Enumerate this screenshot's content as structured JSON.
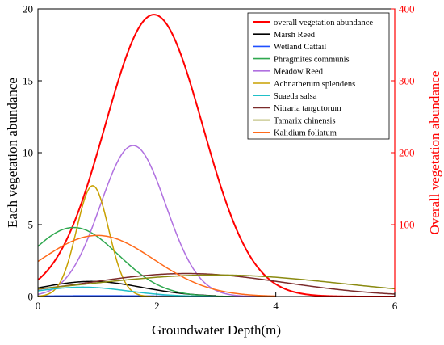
{
  "chart_data": {
    "type": "line",
    "xlabel": "Groundwater Depth(m)",
    "ylabel_left": "Each vegetation abundance",
    "ylabel_right": "Overall vegetation abundance",
    "xlim": [
      0,
      6
    ],
    "ylim_left": [
      0,
      20
    ],
    "ylim_right": [
      0,
      400
    ],
    "xticks": [
      "0",
      "2",
      "4",
      "6"
    ],
    "yticks_left": [
      "0",
      "5",
      "10",
      "15",
      "20"
    ],
    "yticks_right": [
      "100",
      "200",
      "300",
      "400"
    ],
    "right_axis_color": "#ff0000",
    "legend_position": "top-right",
    "series": [
      {
        "name": "overall vegetation abundance",
        "color": "#ff0000",
        "axis": "right",
        "peak": 392,
        "mu": 1.95,
        "sigma": 0.82,
        "xmax": 6
      },
      {
        "name": "Marsh Reed",
        "color": "#000000",
        "axis": "left",
        "peak": 1.05,
        "mu": 0.9,
        "sigma": 0.85,
        "xmax": 3.0
      },
      {
        "name": "Wetland Cattail",
        "color": "#1f4fff",
        "axis": "left",
        "peak": 0.05,
        "mu": 1.0,
        "sigma": 1.0,
        "xmax": 3.0
      },
      {
        "name": "Phragmites communis",
        "color": "#2fa84f",
        "axis": "left",
        "peak": 4.8,
        "mu": 0.6,
        "sigma": 0.75,
        "xmax": 4.0
      },
      {
        "name": "Meadow Reed",
        "color": "#b070e0",
        "axis": "left",
        "peak": 10.5,
        "mu": 1.6,
        "sigma": 0.55,
        "xmax": 4.0
      },
      {
        "name": "Achnatherum splendens",
        "color": "#c8a000",
        "axis": "left",
        "peak": 7.7,
        "mu": 0.92,
        "sigma": 0.27,
        "xmax": 3.0
      },
      {
        "name": "Suaeda salsa",
        "color": "#20c0c8",
        "axis": "left",
        "peak": 0.65,
        "mu": 0.75,
        "sigma": 0.75,
        "xmax": 3.0
      },
      {
        "name": "Nitraria tangutorum",
        "color": "#7a2a2a",
        "axis": "left",
        "peak": 1.6,
        "mu": 2.5,
        "sigma": 1.65,
        "xmax": 6
      },
      {
        "name": "Tamarix chinensis",
        "color": "#8a8a10",
        "axis": "left",
        "peak": 1.5,
        "mu": 3.0,
        "sigma": 2.1,
        "xmax": 6
      },
      {
        "name": "Kalidium foliatum",
        "color": "#ff6a1a",
        "axis": "left",
        "peak": 4.25,
        "mu": 1.0,
        "sigma": 0.95,
        "xmax": 4.0
      }
    ]
  }
}
